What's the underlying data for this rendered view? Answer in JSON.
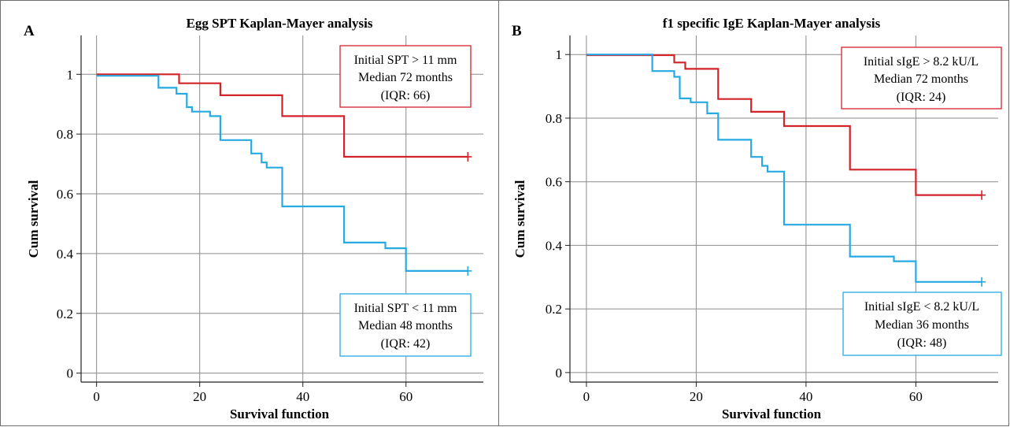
{
  "chart_data": [
    {
      "type": "line",
      "panel_label": "A",
      "title": "Egg SPT Kaplan-Mayer analysis",
      "xlabel": "Survival function",
      "ylabel": "Cum survival",
      "xlim": [
        -3,
        75
      ],
      "ylim": [
        -0.03,
        1.13
      ],
      "xticks": [
        0,
        20,
        40,
        60
      ],
      "yticks": [
        0,
        0.2,
        0.4,
        0.6,
        0.8,
        1
      ],
      "grid": true,
      "series": [
        {
          "color": "#d2232a",
          "censor_marker": "+",
          "points": [
            [
              0,
              1.0
            ],
            [
              16,
              1.0
            ],
            [
              16,
              0.97
            ],
            [
              24,
              0.97
            ],
            [
              24,
              0.93
            ],
            [
              36,
              0.93
            ],
            [
              36,
              0.86
            ],
            [
              48,
              0.86
            ],
            [
              48,
              0.724
            ],
            [
              72,
              0.724
            ]
          ]
        },
        {
          "color": "#27aae1",
          "censor_marker": "+",
          "points": [
            [
              0,
              0.995
            ],
            [
              12,
              0.995
            ],
            [
              12,
              0.955
            ],
            [
              15.5,
              0.955
            ],
            [
              15.5,
              0.935
            ],
            [
              17.5,
              0.935
            ],
            [
              17.5,
              0.89
            ],
            [
              18.5,
              0.89
            ],
            [
              18.5,
              0.875
            ],
            [
              19.5,
              0.875
            ],
            [
              19.5,
              0.875
            ],
            [
              22,
              0.875
            ],
            [
              22,
              0.86
            ],
            [
              24,
              0.86
            ],
            [
              24,
              0.78
            ],
            [
              30,
              0.78
            ],
            [
              30,
              0.735
            ],
            [
              32,
              0.735
            ],
            [
              32,
              0.705
            ],
            [
              33,
              0.705
            ],
            [
              33,
              0.688
            ],
            [
              36,
              0.688
            ],
            [
              36,
              0.558
            ],
            [
              48,
              0.558
            ],
            [
              48,
              0.437
            ],
            [
              56,
              0.437
            ],
            [
              56,
              0.418
            ],
            [
              60,
              0.418
            ],
            [
              60,
              0.342
            ],
            [
              72,
              0.342
            ]
          ]
        }
      ],
      "annotations": [
        {
          "color": "#d2232a",
          "lines": [
            "Initial SPT > 11 mm",
            "Median 72 months",
            "(IQR: 66)"
          ]
        },
        {
          "color": "#27aae1",
          "lines": [
            "Initial SPT < 11 mm",
            "Median 48 months",
            "(IQR: 42)"
          ]
        }
      ]
    },
    {
      "type": "line",
      "panel_label": "B",
      "title": "f1 specific IgE Kaplan-Mayer analysis",
      "xlabel": "Survival function",
      "ylabel": "Cum survival",
      "xlim": [
        -3,
        75
      ],
      "ylim": [
        -0.03,
        1.06
      ],
      "xticks": [
        0,
        20,
        40,
        60
      ],
      "yticks": [
        0,
        0.2,
        0.4,
        0.6,
        0.8,
        1
      ],
      "grid": true,
      "series": [
        {
          "color": "#d2232a",
          "censor_marker": "+",
          "points": [
            [
              0,
              0.998
            ],
            [
              16,
              0.998
            ],
            [
              16,
              0.975
            ],
            [
              18,
              0.975
            ],
            [
              18,
              0.955
            ],
            [
              24,
              0.955
            ],
            [
              24,
              0.86
            ],
            [
              30,
              0.86
            ],
            [
              30,
              0.82
            ],
            [
              36,
              0.82
            ],
            [
              36,
              0.775
            ],
            [
              48,
              0.775
            ],
            [
              48,
              0.638
            ],
            [
              60,
              0.638
            ],
            [
              60,
              0.558
            ],
            [
              72,
              0.558
            ]
          ]
        },
        {
          "color": "#27aae1",
          "censor_marker": "+",
          "points": [
            [
              0,
              1.0
            ],
            [
              12,
              1.0
            ],
            [
              12,
              0.948
            ],
            [
              16,
              0.948
            ],
            [
              16,
              0.93
            ],
            [
              17,
              0.93
            ],
            [
              17,
              0.862
            ],
            [
              19,
              0.862
            ],
            [
              19,
              0.85
            ],
            [
              22,
              0.85
            ],
            [
              22,
              0.815
            ],
            [
              24,
              0.815
            ],
            [
              24,
              0.732
            ],
            [
              30,
              0.732
            ],
            [
              30,
              0.678
            ],
            [
              32,
              0.678
            ],
            [
              32,
              0.65
            ],
            [
              33,
              0.65
            ],
            [
              33,
              0.632
            ],
            [
              36,
              0.632
            ],
            [
              36,
              0.465
            ],
            [
              48,
              0.465
            ],
            [
              48,
              0.365
            ],
            [
              56,
              0.365
            ],
            [
              56,
              0.35
            ],
            [
              60,
              0.35
            ],
            [
              60,
              0.285
            ],
            [
              72,
              0.285
            ]
          ]
        }
      ],
      "annotations": [
        {
          "color": "#d2232a",
          "lines": [
            "Initial sIgE > 8.2 kU/L",
            "Median 72 months",
            "(IQR: 24)"
          ]
        },
        {
          "color": "#27aae1",
          "lines": [
            "Initial sIgE < 8.2 kU/L",
            "Median 36 months",
            "(IQR: 48)"
          ]
        }
      ]
    }
  ]
}
